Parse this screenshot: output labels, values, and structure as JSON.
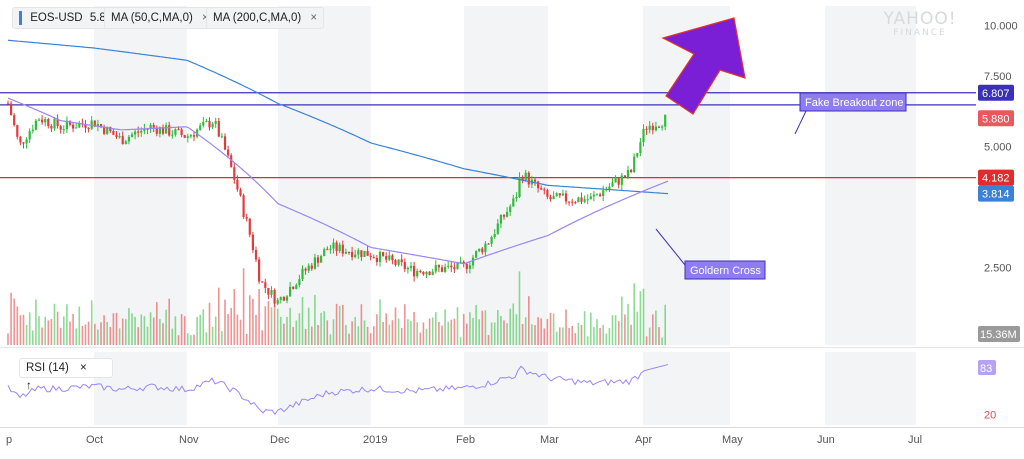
{
  "header": {
    "symbol": "EOS-USD",
    "price": "5.880",
    "indicators": [
      {
        "label": "MA (50,C,MA,0)",
        "color": "#8e7cf0"
      },
      {
        "label": "MA (200,C,MA,0)",
        "color": "#2f7fd3"
      }
    ],
    "close_icon": "×"
  },
  "logo": {
    "line1": "YAHOO!",
    "line2": "FINANCE"
  },
  "rsi_panel": {
    "label": "RSI (14)",
    "close_icon": "×",
    "up_icon": "↑",
    "badge": "83",
    "level_label": "20"
  },
  "colors": {
    "up": "#2ebd3a",
    "down": "#e23b3b",
    "ma50": "#9b86f2",
    "ma200": "#3b82d6",
    "resistance": "#3b30b8",
    "support": "#e02c2c",
    "callout_fill": "#8e7cf0",
    "arrow": "#7a1fd6"
  },
  "chart_data": {
    "type": "candlestick",
    "x_ticks": [
      "p",
      "Oct",
      "Nov",
      "Dec",
      "2019",
      "Feb",
      "Mar",
      "Apr",
      "May",
      "Jun",
      "Jul"
    ],
    "y_ticks": [
      10.0,
      7.5,
      5.0,
      2.5
    ],
    "y_tick_labels": [
      "10.000",
      "7.500",
      "5.000",
      "2.500"
    ],
    "ylim": [
      1.6,
      11.2
    ],
    "scale": "log",
    "price_badges": [
      {
        "label": "6.807",
        "value": 6.807,
        "color": "#3b30b8"
      },
      {
        "label": "5.880",
        "value": 5.88,
        "color": "#e8585c"
      },
      {
        "label": "4.182",
        "value": 4.182,
        "color": "#e02c2c"
      },
      {
        "label": "3.814",
        "value": 3.814,
        "color": "#3b82d6"
      }
    ],
    "volume_label": "15.36M",
    "horizontal_lines": [
      {
        "value": 6.807,
        "color": "#3b30b8"
      },
      {
        "value": 6.35,
        "color": "#3b30b8"
      },
      {
        "value": 4.182,
        "color": "#e02c2c"
      }
    ],
    "price_points": [
      {
        "date": "Sep 01",
        "close": 6.4
      },
      {
        "date": "Sep 05",
        "close": 5.0
      },
      {
        "date": "Sep 12",
        "close": 5.9
      },
      {
        "date": "Sep 20",
        "close": 5.6
      },
      {
        "date": "Oct 01",
        "close": 5.75
      },
      {
        "date": "Oct 10",
        "close": 5.2
      },
      {
        "date": "Oct 20",
        "close": 5.6
      },
      {
        "date": "Nov 01",
        "close": 5.3
      },
      {
        "date": "Nov 10",
        "close": 5.8
      },
      {
        "date": "Nov 20",
        "close": 3.5
      },
      {
        "date": "Nov 26",
        "close": 2.3
      },
      {
        "date": "Dec 01",
        "close": 2.05
      },
      {
        "date": "Dec 10",
        "close": 2.45
      },
      {
        "date": "Dec 18",
        "close": 2.8
      },
      {
        "date": "Jan 01",
        "close": 2.7
      },
      {
        "date": "Jan 15",
        "close": 2.45
      },
      {
        "date": "Feb 01",
        "close": 2.5
      },
      {
        "date": "Feb 10",
        "close": 2.9
      },
      {
        "date": "Feb 20",
        "close": 3.7
      },
      {
        "date": "Feb 22",
        "close": 4.3
      },
      {
        "date": "Mar 01",
        "close": 3.7
      },
      {
        "date": "Mar 15",
        "close": 3.7
      },
      {
        "date": "Mar 28",
        "close": 4.3
      },
      {
        "date": "Apr 02",
        "close": 5.6
      },
      {
        "date": "Apr 10",
        "close": 5.88
      }
    ],
    "ma200": [
      {
        "date": "Sep 01",
        "value": 9.2
      },
      {
        "date": "Oct 01",
        "value": 8.8
      },
      {
        "date": "Nov 01",
        "value": 8.2
      },
      {
        "date": "Dec 01",
        "value": 6.4
      },
      {
        "date": "Jan 01",
        "value": 5.1
      },
      {
        "date": "Feb 01",
        "value": 4.4
      },
      {
        "date": "Mar 01",
        "value": 4.0
      },
      {
        "date": "Apr 10",
        "value": 3.814
      }
    ],
    "ma50": [
      {
        "date": "Sep 01",
        "value": 6.6
      },
      {
        "date": "Sep 20",
        "value": 5.8
      },
      {
        "date": "Oct 10",
        "value": 5.5
      },
      {
        "date": "Nov 01",
        "value": 5.6
      },
      {
        "date": "Dec 01",
        "value": 3.6
      },
      {
        "date": "Jan 01",
        "value": 2.8
      },
      {
        "date": "Feb 01",
        "value": 2.55
      },
      {
        "date": "Mar 01",
        "value": 3.0
      },
      {
        "date": "Apr 10",
        "value": 4.1
      }
    ],
    "rsi": {
      "ylim": [
        0,
        100
      ],
      "ticks": [
        20
      ],
      "last": 83
    },
    "annotations": [
      {
        "text": "Fake Breakout zone",
        "near_date": "May 20",
        "near_value": 7.4
      },
      {
        "text": "Goldern Cross",
        "near_date": "Apr 15",
        "near_value": 2.7
      }
    ]
  }
}
